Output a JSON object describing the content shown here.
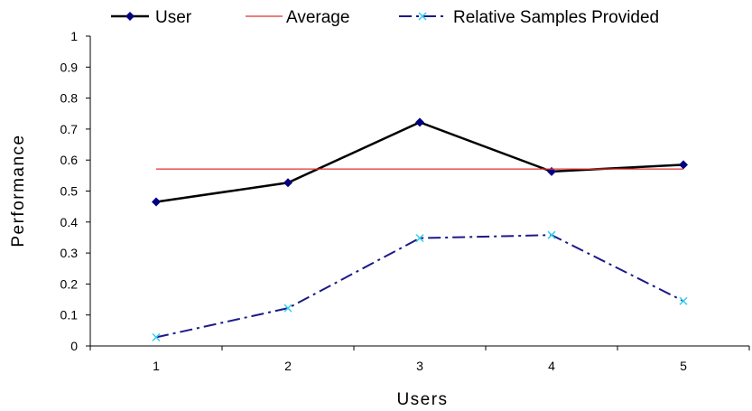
{
  "chart_data": {
    "type": "line",
    "categories": [
      "1",
      "2",
      "3",
      "4",
      "5"
    ],
    "xlabel": "Users",
    "ylabel": "Performance",
    "ylim": [
      0,
      1
    ],
    "yticks": [
      "0",
      "0.1",
      "0.2",
      "0.3",
      "0.4",
      "0.5",
      "0.6",
      "0.7",
      "0.8",
      "0.9",
      "1"
    ],
    "grid": false,
    "legend_position": "top",
    "series": [
      {
        "name": "User",
        "values": [
          0.465,
          0.527,
          0.722,
          0.563,
          0.585
        ],
        "color": "#000000",
        "marker": "diamond",
        "marker_color": "#000080",
        "line_style": "solid"
      },
      {
        "name": "Average",
        "values": [
          0.571,
          0.571,
          0.571,
          0.571,
          0.571
        ],
        "color": "#e03030",
        "marker": "none",
        "line_style": "solid"
      },
      {
        "name": "Relative Samples Provided",
        "values": [
          0.028,
          0.122,
          0.348,
          0.358,
          0.145
        ],
        "color": "#1a1a8a",
        "marker": "x",
        "marker_color": "#33ccee",
        "line_style": "dash-dot"
      }
    ]
  }
}
